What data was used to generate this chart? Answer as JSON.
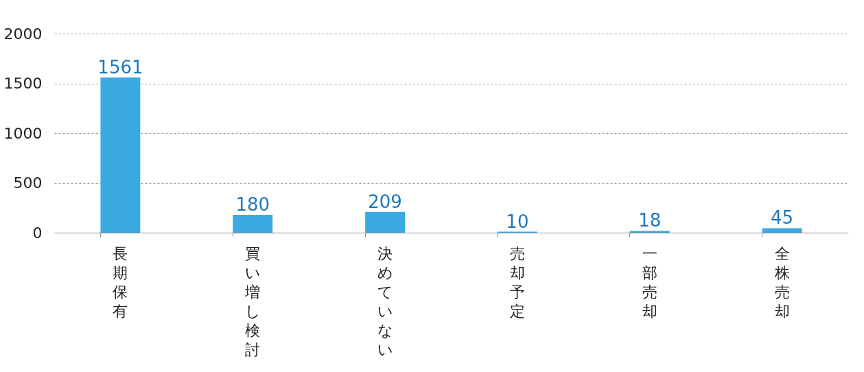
{
  "chart_data": {
    "type": "bar",
    "categories": [
      "長期保有",
      "買い増し検討",
      "決めていない",
      "売却予定",
      "一部売却",
      "全株売却"
    ],
    "values": [
      1561,
      180,
      209,
      10,
      18,
      45
    ],
    "color": "#3aaae2",
    "ylim": [
      0,
      2000
    ],
    "yticks": [
      0,
      500,
      1000,
      1500,
      2000
    ],
    "grid": "y",
    "data_labels": true
  }
}
